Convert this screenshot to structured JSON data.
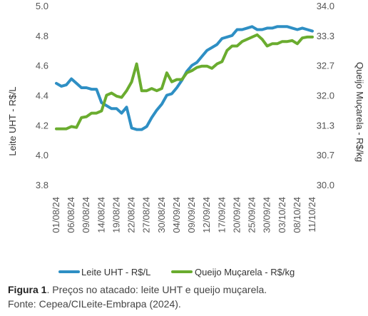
{
  "chart_data": {
    "type": "line",
    "x": [
      "01/08/24",
      "02/08/24",
      "05/08/24",
      "06/08/24",
      "07/08/24",
      "08/08/24",
      "09/08/24",
      "12/08/24",
      "13/08/24",
      "14/08/24",
      "15/08/24",
      "16/08/24",
      "19/08/24",
      "20/08/24",
      "21/08/24",
      "22/08/24",
      "23/08/24",
      "26/08/24",
      "27/08/24",
      "28/08/24",
      "29/08/24",
      "30/08/24",
      "02/09/24",
      "03/09/24",
      "04/09/24",
      "05/09/24",
      "06/09/24",
      "09/09/24",
      "10/09/24",
      "11/09/24",
      "12/09/24",
      "13/09/24",
      "16/09/24",
      "17/09/24",
      "18/09/24",
      "19/09/24",
      "20/09/24",
      "23/09/24",
      "24/09/24",
      "25/09/24",
      "26/09/24",
      "27/09/24",
      "30/09/24",
      "01/10/24",
      "02/10/24",
      "03/10/24",
      "04/10/24",
      "07/10/24",
      "08/10/24",
      "09/10/24",
      "10/10/24",
      "11/10/24"
    ],
    "x_tick_labels": [
      "01/08/24",
      "06/08/24",
      "09/08/24",
      "14/08/24",
      "19/08/24",
      "22/08/24",
      "27/08/24",
      "30/08/24",
      "04/09/24",
      "09/09/24",
      "12/09/24",
      "17/09/24",
      "20/09/24",
      "25/09/24",
      "30/09/24",
      "03/10/24",
      "08/10/24",
      "11/10/24"
    ],
    "series": [
      {
        "name": "Leite UHT - R$/L",
        "axis": "left",
        "color": "#2e8fc4",
        "values": [
          4.48,
          4.46,
          4.47,
          4.51,
          4.48,
          4.45,
          4.45,
          4.44,
          4.44,
          4.35,
          4.33,
          4.31,
          4.31,
          4.28,
          4.32,
          4.18,
          4.17,
          4.17,
          4.19,
          4.25,
          4.3,
          4.34,
          4.4,
          4.41,
          4.45,
          4.5,
          4.56,
          4.6,
          4.62,
          4.66,
          4.7,
          4.72,
          4.74,
          4.78,
          4.79,
          4.8,
          4.84,
          4.84,
          4.85,
          4.86,
          4.84,
          4.84,
          4.85,
          4.85,
          4.86,
          4.86,
          4.86,
          4.85,
          4.84,
          4.85,
          4.84,
          4.83
        ]
      },
      {
        "name": "Queijo Muçarela - R$/kg",
        "axis": "right",
        "color": "#6aac2f",
        "values": [
          31.25,
          31.25,
          31.25,
          31.3,
          31.28,
          31.5,
          31.52,
          31.6,
          31.6,
          31.65,
          32.0,
          32.05,
          31.98,
          31.95,
          32.1,
          32.3,
          32.7,
          32.1,
          32.1,
          32.15,
          32.1,
          32.15,
          32.5,
          32.3,
          32.35,
          32.35,
          32.5,
          32.55,
          32.62,
          32.65,
          32.65,
          32.6,
          32.7,
          32.75,
          33.0,
          33.1,
          33.1,
          33.2,
          33.25,
          33.3,
          33.35,
          33.25,
          33.1,
          33.15,
          33.15,
          33.2,
          33.2,
          33.22,
          33.15,
          33.28,
          33.3,
          33.3
        ]
      }
    ],
    "ylabel_left": "Leite UHT - R$/L",
    "ylabel_right": "Queijo Muçarela - R$/kg",
    "yticks_left": [
      "5.0",
      "4.8",
      "4.6",
      "4.4",
      "4.2",
      "4.0",
      "3.8"
    ],
    "yticks_right": [
      "34.0",
      "33.3",
      "32.7",
      "32.0",
      "31.3",
      "30.7",
      "30.0"
    ],
    "ylim_left": [
      3.8,
      5.0
    ],
    "ylim_right": [
      30.0,
      34.0
    ],
    "grid": false,
    "legend_position": "bottom"
  },
  "caption": {
    "label": "Figura 1",
    "line1": ". Preços no atacado: leite UHT e queijo muçarela.",
    "line2": "Fonte: Cepea/CILeite-Embrapa (2024)."
  }
}
